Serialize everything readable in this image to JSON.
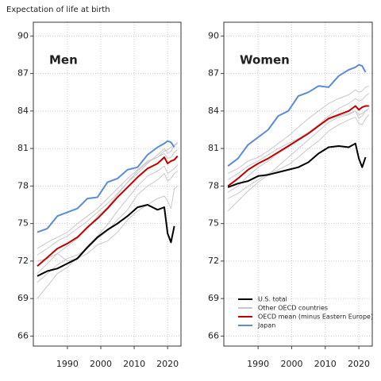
{
  "title": "Expectation of life at birth",
  "chart_data": [
    {
      "type": "line",
      "title": "Men",
      "x": [
        1981,
        1984,
        1987,
        1990,
        1993,
        1996,
        1999,
        2002,
        2005,
        2008,
        2011,
        2014,
        2017,
        2019,
        2020,
        2021,
        2022,
        2023
      ],
      "xlim": [
        1979.8,
        2024
      ],
      "xticks": [
        1990,
        2000,
        2010,
        2020
      ],
      "ylim": [
        65.2,
        91.1
      ],
      "yticks": [
        66,
        69,
        72,
        75,
        78,
        81,
        84,
        87,
        90
      ],
      "grid": true,
      "series": [
        {
          "color": "#000000",
          "values": [
            70.8,
            71.2,
            71.4,
            71.8,
            72.2,
            73.1,
            73.9,
            74.5,
            75.0,
            75.6,
            76.3,
            76.5,
            76.1,
            76.3,
            74.2,
            73.5,
            74.8,
            null
          ]
        },
        {
          "color": "#c8c8c8",
          "lines": [
            [
              69.0,
              70.0,
              71.0,
              71.5,
              72.3,
              73.2,
              74.0,
              74.9,
              76.0,
              77.0,
              78.0,
              78.8,
              79.2,
              79.6,
              79.0,
              79.2,
              79.4,
              79.7
            ],
            [
              71.0,
              71.8,
              72.6,
              73.2,
              73.8,
              74.6,
              75.6,
              76.3,
              77.3,
              78.3,
              79.2,
              79.9,
              80.3,
              80.6,
              80.2,
              80.3,
              80.7,
              80.9
            ],
            [
              72.5,
              73.0,
              73.6,
              74.0,
              74.6,
              75.2,
              75.9,
              76.6,
              77.4,
              78.3,
              79.0,
              79.8,
              80.5,
              81.0,
              80.6,
              80.8,
              81.2,
              81.4
            ],
            [
              70.3,
              71.0,
              71.7,
              72.2,
              72.5,
              73.0,
              73.8,
              74.4,
              75.3,
              76.1,
              77.3,
              78.0,
              78.5,
              79.0,
              78.4,
              78.6,
              79.0,
              79.2
            ],
            [
              73.0,
              73.5,
              73.9,
              74.3,
              75.0,
              75.6,
              76.2,
              77.0,
              77.8,
              78.6,
              79.3,
              80.0,
              80.3,
              80.8,
              80.9,
              81.1,
              81.3,
              81.5
            ],
            [
              72.0,
              72.2,
              72.6,
              72.0,
              72.2,
              72.6,
              73.3,
              73.6,
              74.3,
              75.3,
              76.0,
              76.5,
              77.0,
              77.2,
              76.8,
              76.2,
              77.8,
              78.0
            ]
          ]
        },
        {
          "color": "#c00000",
          "values": [
            71.6,
            72.3,
            73.0,
            73.4,
            73.9,
            74.7,
            75.4,
            76.2,
            77.1,
            77.9,
            78.7,
            79.4,
            79.8,
            80.3,
            79.8,
            80.0,
            80.1,
            80.4
          ]
        },
        {
          "color": "#5b8bd9",
          "values": [
            74.3,
            74.6,
            75.6,
            75.9,
            76.2,
            77.0,
            77.1,
            78.3,
            78.6,
            79.3,
            79.5,
            80.5,
            81.1,
            81.4,
            81.6,
            81.5,
            81.1,
            null
          ]
        }
      ]
    },
    {
      "type": "line",
      "title": "Women",
      "x": [
        1981,
        1984,
        1987,
        1990,
        1993,
        1996,
        1999,
        2002,
        2005,
        2008,
        2011,
        2014,
        2017,
        2019,
        2020,
        2021,
        2022,
        2023
      ],
      "xlim": [
        1979.8,
        2024
      ],
      "xticks": [
        1990,
        2000,
        2010,
        2020
      ],
      "ylim": [
        65.2,
        91.1
      ],
      "yticks": [
        66,
        69,
        72,
        75,
        78,
        81,
        84,
        87,
        90
      ],
      "grid": true,
      "legend": "bottom left",
      "series": [
        {
          "name": "U.S. total",
          "color": "#000000",
          "values": [
            77.9,
            78.2,
            78.4,
            78.8,
            78.9,
            79.1,
            79.3,
            79.5,
            79.9,
            80.6,
            81.1,
            81.2,
            81.1,
            81.4,
            80.2,
            79.5,
            80.3,
            null
          ]
        },
        {
          "name": "Other OECD countries",
          "color": "#c8c8c8",
          "lines": [
            [
              76.0,
              76.8,
              77.6,
              78.3,
              78.9,
              79.6,
              80.3,
              81.0,
              81.7,
              82.4,
              83.1,
              83.5,
              83.7,
              84.0,
              83.7,
              83.8,
              84.0,
              84.2
            ],
            [
              77.5,
              78.0,
              78.8,
              79.5,
              80.0,
              80.6,
              81.1,
              81.7,
              82.3,
              82.9,
              83.6,
              84.2,
              84.6,
              85.0,
              84.8,
              84.9,
              85.2,
              85.4
            ],
            [
              79.0,
              79.4,
              80.0,
              80.3,
              80.8,
              81.4,
              82.0,
              82.7,
              83.4,
              84.0,
              84.6,
              85.0,
              85.3,
              85.7,
              85.5,
              85.6,
              85.9,
              86.0
            ],
            [
              78.5,
              79.0,
              79.6,
              80.0,
              80.5,
              81.0,
              81.4,
              81.8,
              82.3,
              82.8,
              83.3,
              83.6,
              83.8,
              84.0,
              83.4,
              83.6,
              84.0,
              84.2
            ],
            [
              77.0,
              77.4,
              78.0,
              78.5,
              79.0,
              79.3,
              79.7,
              80.3,
              81.0,
              81.6,
              82.4,
              82.9,
              83.3,
              83.5,
              83.0,
              82.9,
              83.4,
              83.7
            ]
          ]
        },
        {
          "name": "OECD mean (minus Eastern Europe)",
          "color": "#c00000",
          "values": [
            78.0,
            78.6,
            79.3,
            79.8,
            80.2,
            80.7,
            81.2,
            81.7,
            82.2,
            82.8,
            83.4,
            83.7,
            84.0,
            84.4,
            84.1,
            84.3,
            84.4,
            84.4
          ]
        },
        {
          "name": "Japan",
          "color": "#5b8bd9",
          "values": [
            79.6,
            80.2,
            81.3,
            81.9,
            82.5,
            83.6,
            84.0,
            85.2,
            85.5,
            86.0,
            85.9,
            86.8,
            87.3,
            87.5,
            87.7,
            87.6,
            87.1,
            null
          ]
        }
      ]
    }
  ]
}
